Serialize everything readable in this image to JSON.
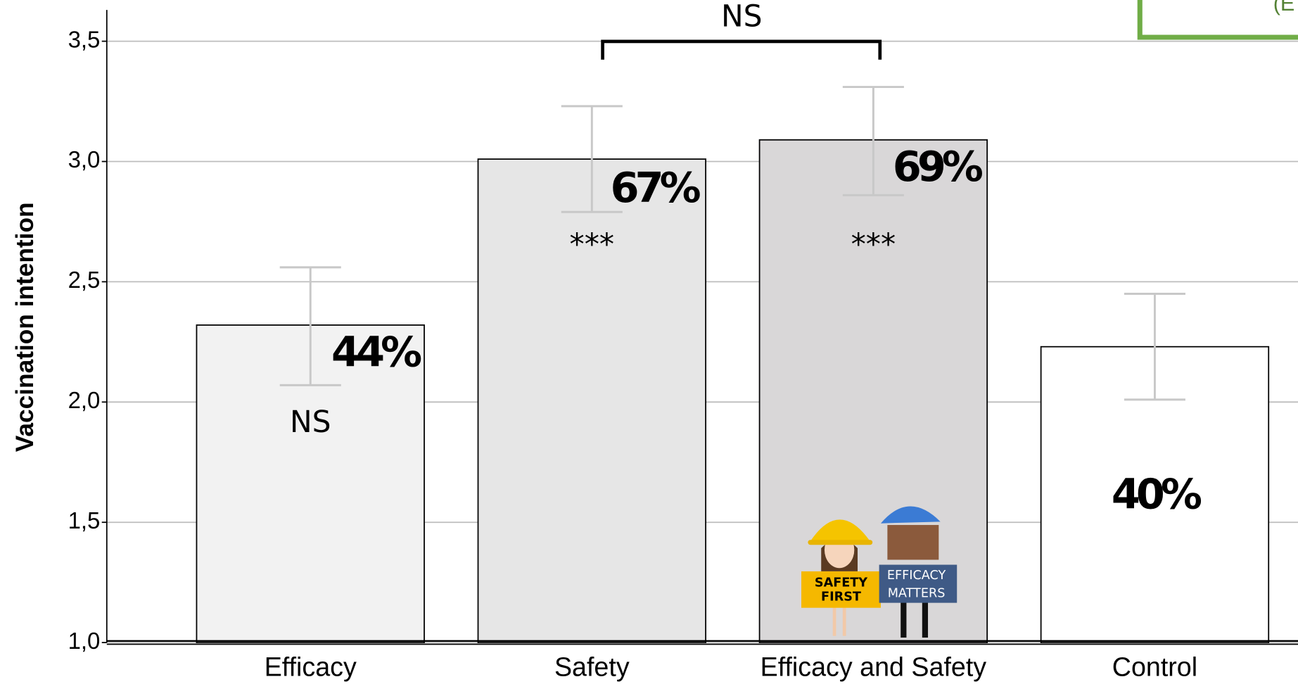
{
  "chart_data": {
    "type": "bar",
    "y_label": "Vaccination intention",
    "categories": [
      "Efficacy",
      "Safety",
      "Efficacy and Safety",
      "Control"
    ],
    "values": [
      2.32,
      3.01,
      3.09,
      2.23
    ],
    "error_low": [
      2.07,
      2.79,
      2.86,
      2.01
    ],
    "error_high": [
      2.56,
      3.23,
      3.31,
      2.45
    ],
    "colors": [
      "#f2f2f2",
      "#e6e6e6",
      "#d9d7d8",
      "#ffffff"
    ],
    "percent_labels": [
      "44%",
      "67%",
      "69%",
      "40%"
    ],
    "significance": [
      "NS",
      "***",
      "***",
      null
    ],
    "bracket_label": "NS",
    "ylim": [
      1.0,
      3.63
    ],
    "yticks": [
      {
        "value": 1.0,
        "label": "1,0"
      },
      {
        "value": 1.5,
        "label": "1,5"
      },
      {
        "value": 2.0,
        "label": "2,0"
      },
      {
        "value": 2.5,
        "label": "2,5"
      },
      {
        "value": 3.0,
        "label": "3,0"
      },
      {
        "value": 3.5,
        "label": "3,5"
      }
    ],
    "grid": true,
    "illustration": {
      "sign_left": [
        "SAFETY",
        "FIRST"
      ],
      "sign_right": [
        "EFFICACY",
        "MATTERS"
      ]
    },
    "corner_note": "(E"
  }
}
